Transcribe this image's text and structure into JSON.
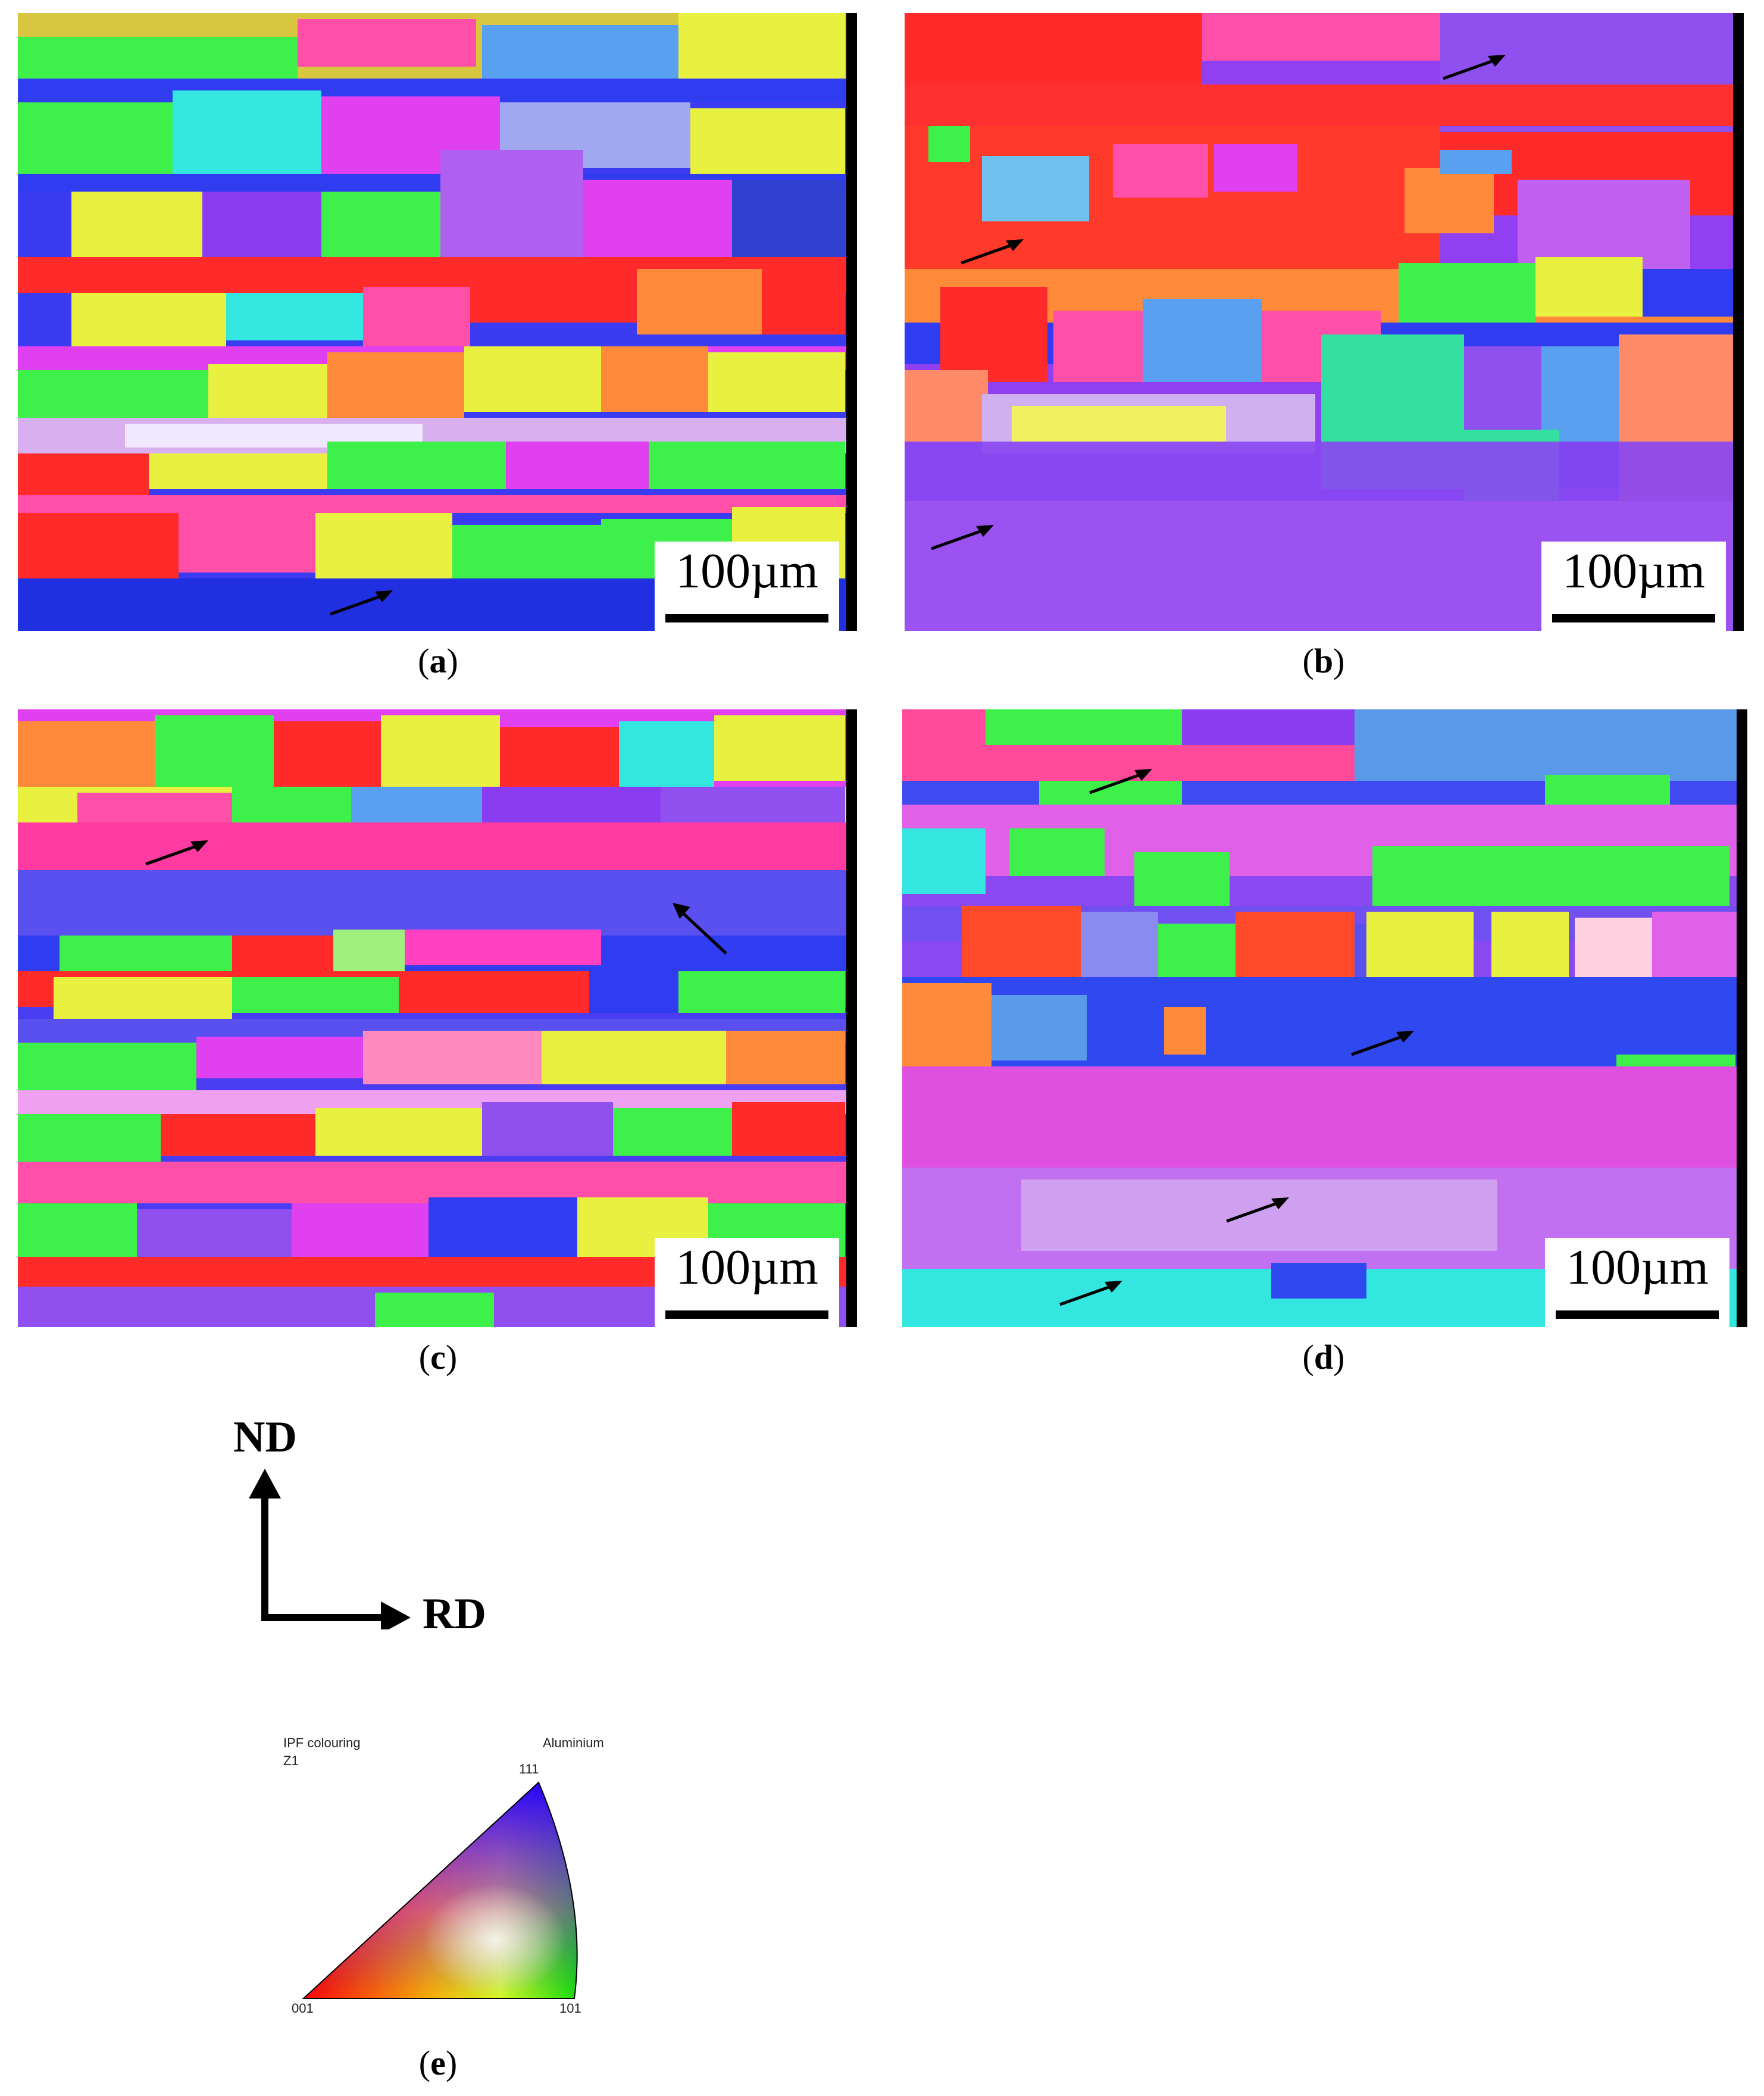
{
  "panels": {
    "a": {
      "caption_open": "(",
      "caption_letter": "a",
      "caption_close": ")",
      "scale_label": "100µm"
    },
    "b": {
      "caption_open": "(",
      "caption_letter": "b",
      "caption_close": ")",
      "scale_label": "100µm"
    },
    "c": {
      "caption_open": "(",
      "caption_letter": "c",
      "caption_close": ")",
      "scale_label": "100µm"
    },
    "d": {
      "caption_open": "(",
      "caption_letter": "d",
      "caption_close": ")",
      "scale_label": "100µm"
    }
  },
  "axes": {
    "vertical_label": "ND",
    "horizontal_label": "RD"
  },
  "ipf_key": {
    "title_left": "IPF colouring",
    "title_right": "Aluminium",
    "direction": "Z1",
    "corner_top": "111",
    "corner_left": "001",
    "corner_right": "101",
    "caption_open": "(",
    "caption_letter": "e",
    "caption_close": ")"
  },
  "colors": {
    "red": "#ff2a2a",
    "green": "#3df04a",
    "blue": "#2f3cf0",
    "magenta": "#e040f0",
    "purple": "#8a3cf0",
    "cyan": "#33e6e0",
    "yellow": "#e8f040",
    "orange": "#ff8a3a",
    "pink": "#ff4fa8",
    "lightblue": "#5aa0f0"
  }
}
